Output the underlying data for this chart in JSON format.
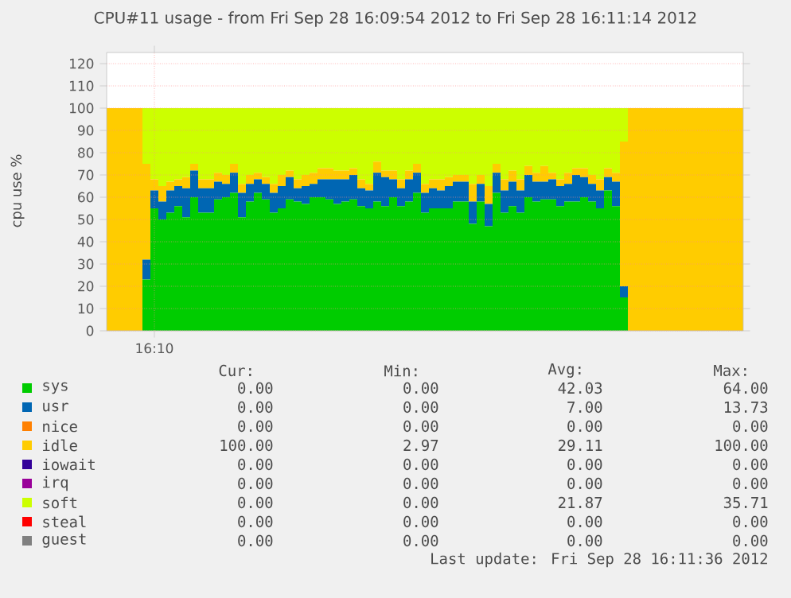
{
  "chart_data": {
    "type": "area",
    "stacked": true,
    "title": "CPU#11 usage - from Fri Sep 28 16:09:54 2012 to Fri Sep 28 16:11:14 2012",
    "ylabel": "cpu use %",
    "categories": [
      null,
      null,
      null,
      null,
      null,
      null,
      "16:10",
      null,
      null,
      null,
      null,
      null,
      null,
      null,
      null,
      null,
      null,
      null,
      null,
      null,
      null,
      null,
      null,
      null,
      null,
      null,
      null,
      null,
      null,
      null,
      null,
      null,
      null,
      null,
      null,
      null,
      null,
      null,
      null,
      null,
      null,
      null,
      null,
      null,
      null,
      null,
      null,
      null,
      null,
      null,
      null,
      null,
      null,
      null,
      null,
      null,
      null,
      null,
      null,
      null,
      null,
      null,
      null,
      null,
      null,
      null,
      null,
      null,
      null,
      null,
      null,
      null,
      null,
      null,
      null,
      null,
      null,
      null,
      null,
      null,
      null
    ],
    "ylim": [
      0,
      125
    ],
    "yticks": [
      0,
      10,
      20,
      30,
      40,
      50,
      60,
      70,
      80,
      90,
      100,
      110,
      120
    ],
    "grid": true,
    "legend": "bottom",
    "series": [
      {
        "name": "sys",
        "color": "#00cc00",
        "values": [
          0,
          0,
          0,
          0,
          0,
          23,
          55,
          50,
          53,
          56,
          51,
          60,
          53,
          53,
          59,
          60,
          62,
          51,
          58,
          62,
          59,
          53,
          55,
          59,
          58,
          57,
          60,
          60,
          59,
          57,
          58,
          59,
          56,
          55,
          58,
          56,
          60,
          56,
          58,
          62,
          53,
          55,
          55,
          55,
          58,
          58,
          48,
          58,
          47,
          62,
          53,
          56,
          53,
          60,
          58,
          59,
          59,
          56,
          58,
          58,
          60,
          58,
          55,
          63,
          56,
          15,
          0,
          0,
          0,
          0,
          0,
          0,
          0,
          0,
          0,
          0,
          0,
          0,
          0,
          0,
          0
        ]
      },
      {
        "name": "usr",
        "color": "#0066b3",
        "values": [
          0,
          0,
          0,
          0,
          0,
          9,
          8,
          8,
          10,
          9,
          13,
          12,
          11,
          11,
          8,
          6,
          9,
          11,
          8,
          6,
          7,
          9,
          10,
          10,
          6,
          8,
          6,
          8,
          9,
          11,
          10,
          11,
          8,
          8,
          13,
          13,
          8,
          8,
          10,
          9,
          9,
          9,
          8,
          10,
          9,
          9,
          10,
          8,
          10,
          9,
          10,
          11,
          10,
          10,
          9,
          8,
          9,
          9,
          8,
          12,
          9,
          8,
          8,
          6,
          11,
          5,
          0,
          0,
          0,
          0,
          0,
          0,
          0,
          0,
          0,
          0,
          0,
          0,
          0,
          0,
          0
        ]
      },
      {
        "name": "nice",
        "color": "#ff8000",
        "values": [
          null,
          null,
          null,
          null,
          null,
          null,
          null,
          null,
          null,
          null,
          null,
          null,
          null,
          null,
          null,
          null,
          null,
          null,
          null,
          null,
          null,
          null,
          null,
          null,
          null,
          null,
          null,
          null,
          null,
          null,
          null,
          null,
          null,
          null,
          null,
          null,
          null,
          null,
          null,
          null,
          null,
          null,
          null,
          null,
          null,
          null,
          null,
          null,
          null,
          null,
          null,
          null,
          null,
          null,
          null,
          null,
          null,
          null,
          null,
          null,
          null,
          null,
          null,
          null,
          null,
          null,
          null,
          null,
          null,
          null,
          null,
          null,
          null,
          null,
          null,
          null,
          null,
          null,
          null,
          null,
          null
        ]
      },
      {
        "name": "idle",
        "color": "#ffcc00",
        "values": [
          100,
          100,
          100,
          100,
          100,
          43,
          5,
          7,
          4,
          3,
          5,
          3,
          4,
          4,
          4,
          4,
          4,
          4,
          4,
          3,
          3,
          4,
          5,
          3,
          4,
          5,
          5,
          5,
          5,
          4,
          4,
          3,
          4,
          3,
          5,
          3,
          4,
          4,
          4,
          4,
          4,
          4,
          5,
          4,
          3,
          3,
          8,
          4,
          8,
          4,
          5,
          5,
          5,
          4,
          4,
          7,
          3,
          3,
          5,
          3,
          4,
          4,
          5,
          4,
          4,
          65,
          100,
          100,
          100,
          100,
          100,
          100,
          100,
          100,
          100,
          100,
          100,
          100,
          100,
          100,
          100
        ]
      },
      {
        "name": "iowait",
        "color": "#330099",
        "values": [
          null,
          null,
          null,
          null,
          null,
          null,
          null,
          null,
          null,
          null,
          null,
          null,
          null,
          null,
          null,
          null,
          null,
          null,
          null,
          null,
          null,
          null,
          null,
          null,
          null,
          null,
          null,
          null,
          null,
          null,
          null,
          null,
          null,
          null,
          null,
          null,
          null,
          null,
          null,
          null,
          null,
          null,
          null,
          null,
          null,
          null,
          null,
          null,
          null,
          null,
          null,
          null,
          null,
          null,
          null,
          null,
          null,
          null,
          null,
          null,
          null,
          null,
          null,
          null,
          null,
          null,
          null,
          null,
          null,
          null,
          null,
          null,
          null,
          null,
          null,
          null,
          null,
          null,
          null,
          null,
          null
        ]
      },
      {
        "name": "irq",
        "color": "#990099",
        "values": [
          null,
          null,
          null,
          null,
          null,
          null,
          null,
          null,
          null,
          null,
          null,
          null,
          null,
          null,
          null,
          null,
          null,
          null,
          null,
          null,
          null,
          null,
          null,
          null,
          null,
          null,
          null,
          null,
          null,
          null,
          null,
          null,
          null,
          null,
          null,
          null,
          null,
          null,
          null,
          null,
          null,
          null,
          null,
          null,
          null,
          null,
          null,
          null,
          null,
          null,
          null,
          null,
          null,
          null,
          null,
          null,
          null,
          null,
          null,
          null,
          null,
          null,
          null,
          null,
          null,
          null,
          null,
          null,
          null,
          null,
          null,
          null,
          null,
          null,
          null,
          null,
          null,
          null,
          null,
          null,
          null
        ]
      },
      {
        "name": "soft",
        "color": "#ccff00",
        "values": [
          0,
          0,
          0,
          0,
          0,
          25,
          32,
          35,
          33,
          32,
          31,
          25,
          32,
          32,
          29,
          30,
          25,
          34,
          30,
          29,
          31,
          34,
          30,
          28,
          32,
          30,
          29,
          27,
          27,
          28,
          28,
          27,
          32,
          34,
          24,
          28,
          28,
          32,
          28,
          25,
          34,
          32,
          32,
          31,
          30,
          30,
          34,
          30,
          35,
          25,
          32,
          28,
          32,
          26,
          29,
          26,
          29,
          32,
          29,
          27,
          27,
          30,
          32,
          27,
          29,
          15,
          0,
          0,
          0,
          0,
          0,
          0,
          0,
          0,
          0,
          0,
          0,
          0,
          0,
          0,
          0
        ]
      },
      {
        "name": "steal",
        "color": "#ff0000",
        "values": [
          null,
          null,
          null,
          null,
          null,
          null,
          null,
          null,
          null,
          null,
          null,
          null,
          null,
          null,
          null,
          null,
          null,
          null,
          null,
          null,
          null,
          null,
          null,
          null,
          null,
          null,
          null,
          null,
          null,
          null,
          null,
          null,
          null,
          null,
          null,
          null,
          null,
          null,
          null,
          null,
          null,
          null,
          null,
          null,
          null,
          null,
          null,
          null,
          null,
          null,
          null,
          null,
          null,
          null,
          null,
          null,
          null,
          null,
          null,
          null,
          null,
          null,
          null,
          null,
          null,
          null,
          null,
          null,
          null,
          null,
          null,
          null,
          null,
          null,
          null,
          null,
          null,
          null,
          null,
          null,
          null
        ]
      },
      {
        "name": "guest",
        "color": "#808080",
        "values": [
          null,
          null,
          null,
          null,
          null,
          null,
          null,
          null,
          null,
          null,
          null,
          null,
          null,
          null,
          null,
          null,
          null,
          null,
          null,
          null,
          null,
          null,
          null,
          null,
          null,
          null,
          null,
          null,
          null,
          null,
          null,
          null,
          null,
          null,
          null,
          null,
          null,
          null,
          null,
          null,
          null,
          null,
          null,
          null,
          null,
          null,
          null,
          null,
          null,
          null,
          null,
          null,
          null,
          null,
          null,
          null,
          null,
          null,
          null,
          null,
          null,
          null,
          null,
          null,
          null,
          null,
          null,
          null,
          null,
          null,
          null,
          null,
          null,
          null,
          null,
          null,
          null,
          null,
          null,
          null,
          null
        ]
      }
    ],
    "annotations": [
      "Cur:",
      "Min:",
      "Avg:",
      "Max:",
      "0.00",
      "0.00",
      "42.03",
      "64.00",
      "0.00",
      "0.00",
      "7.00",
      "13.73",
      "0.00",
      "0.00",
      "0.00",
      "0.00",
      "100.00",
      "2.97",
      "29.11",
      "100.00",
      "0.00",
      "0.00",
      "0.00",
      "0.00",
      "0.00",
      "0.00",
      "0.00",
      "0.00",
      "0.00",
      "0.00",
      "21.87",
      "35.71",
      "0.00",
      "0.00",
      "0.00",
      "0.00",
      "0.00",
      "0.00",
      "0.00",
      "0.00",
      "Last update: Fri Sep 28 16:11:36 2012"
    ]
  }
}
